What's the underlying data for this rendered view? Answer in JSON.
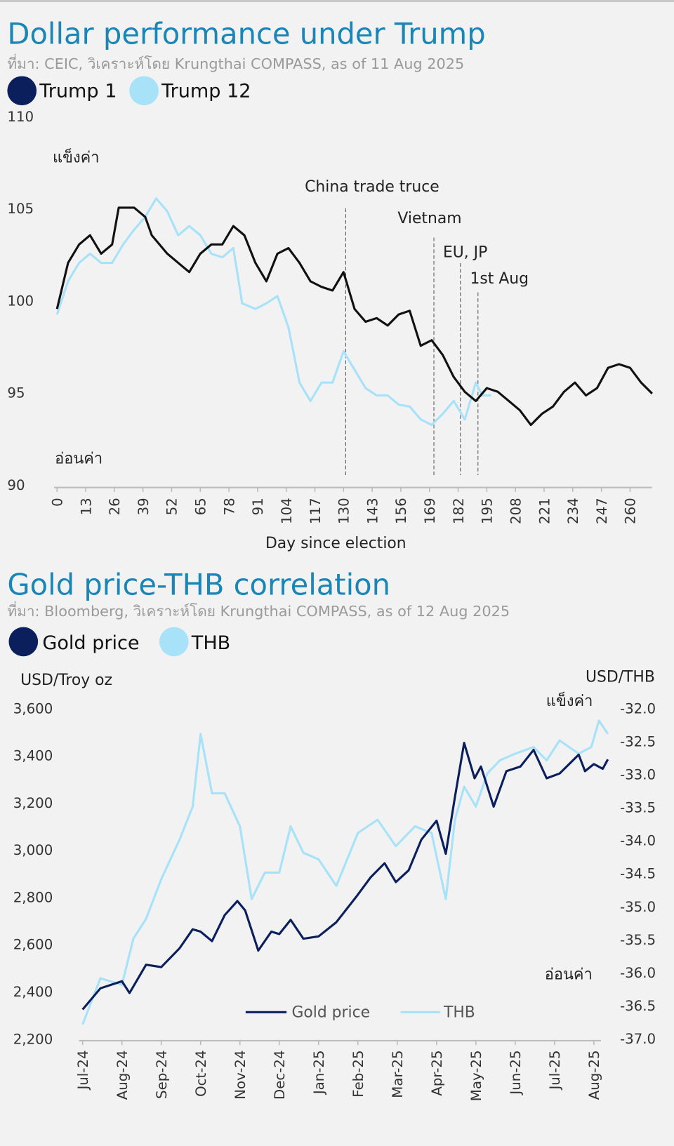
{
  "colors": {
    "title": "#1a86b5",
    "dark_series": "#0b1f5c",
    "light_series": "#a8e2f8",
    "trump1_line": "#111111"
  },
  "chart_data": [
    {
      "type": "line",
      "title": "Dollar performance under Trump",
      "subtitle": "ที่มา: CEIC, วิเคราะห์โดย Krungthai COMPASS, as of 11 Aug 2025",
      "xlabel": "Day since election",
      "ylabel": "",
      "ylim": [
        90,
        110
      ],
      "xlim": [
        0,
        270
      ],
      "grid": false,
      "legend_position": "top-left",
      "yticks": [
        "110",
        "105",
        "100",
        "95",
        "90"
      ],
      "xticks": [
        "0",
        "13",
        "26",
        "39",
        "52",
        "65",
        "78",
        "91",
        "104",
        "117",
        "130",
        "143",
        "156",
        "169",
        "182",
        "195",
        "208",
        "221",
        "234",
        "247",
        "260"
      ],
      "strong_label": "แข็งค่า",
      "weak_label": "อ่อนค่า",
      "annotations": [
        {
          "label": "China trade truce",
          "day": 131
        },
        {
          "label": "Vietnam",
          "day": 171
        },
        {
          "label": "EU, JP",
          "day": 183
        },
        {
          "label": "1st Aug",
          "day": 191
        }
      ],
      "series": [
        {
          "name": "Trump 1",
          "color": "#111111",
          "x": [
            0,
            5,
            10,
            15,
            20,
            25,
            28,
            35,
            40,
            43,
            50,
            55,
            60,
            65,
            70,
            75,
            80,
            85,
            90,
            95,
            100,
            105,
            110,
            115,
            120,
            125,
            130,
            135,
            140,
            145,
            150,
            155,
            160,
            165,
            170,
            175,
            180,
            185,
            190,
            195,
            200,
            205,
            210,
            215,
            220,
            225,
            230,
            235,
            240,
            245,
            250,
            255,
            260,
            265,
            270
          ],
          "values": [
            99.5,
            102,
            103,
            103.5,
            102.5,
            103,
            105,
            105,
            104.5,
            103.5,
            102.5,
            102,
            101.5,
            102.5,
            103,
            103,
            104,
            103.5,
            102,
            101,
            102.5,
            102.8,
            102,
            101,
            100.7,
            100.5,
            101.5,
            99.5,
            98.8,
            99,
            98.6,
            99.2,
            99.4,
            97.5,
            97.8,
            97,
            95.8,
            95,
            94.5,
            95.2,
            95,
            94.5,
            94,
            93.2,
            93.8,
            94.2,
            95,
            95.5,
            94.8,
            95.2,
            96.3,
            96.5,
            96.3,
            95.5,
            94.9
          ]
        },
        {
          "name": "Trump 12",
          "color": "#a8e2f8",
          "x": [
            0,
            5,
            10,
            15,
            20,
            25,
            30,
            35,
            40,
            45,
            50,
            55,
            60,
            65,
            70,
            75,
            80,
            84,
            90,
            95,
            100,
            105,
            110,
            115,
            120,
            125,
            130,
            135,
            140,
            145,
            150,
            155,
            160,
            165,
            170,
            175,
            180,
            185,
            190,
            193,
            197
          ],
          "values": [
            99.2,
            101,
            102,
            102.5,
            102,
            102,
            103,
            103.8,
            104.5,
            105.5,
            104.8,
            103.5,
            104,
            103.5,
            102.5,
            102.3,
            102.8,
            99.8,
            99.5,
            99.8,
            100.2,
            98.5,
            95.5,
            94.5,
            95.5,
            95.5,
            97.2,
            96.2,
            95.2,
            94.8,
            94.8,
            94.3,
            94.2,
            93.5,
            93.2,
            93.8,
            94.5,
            93.5,
            95.5,
            94.8,
            94.8
          ]
        }
      ]
    },
    {
      "type": "line",
      "title": "Gold price-THB correlation",
      "subtitle": "ที่มา: Bloomberg, วิเคราะห์โดย Krungthai COMPASS, as of 12 Aug 2025",
      "ylabel_left": "USD/Troy oz",
      "ylabel_right": "USD/THB",
      "ylim_left": [
        2200,
        3600
      ],
      "ylim_right": [
        -37.0,
        -32.0
      ],
      "grid": false,
      "legend_position": "bottom-center",
      "strong_label": "แข็งค่า",
      "weak_label": "อ่อนค่า",
      "yticks_left": [
        "3,600",
        "3,400",
        "3,200",
        "3,000",
        "2,800",
        "2,600",
        "2,400",
        "2,200"
      ],
      "yticks_right": [
        "-32.0",
        "-32.5",
        "-33.0",
        "-33.5",
        "-34.0",
        "-34.5",
        "-35.0",
        "-35.5",
        "-36.0",
        "-36.5",
        "-37.0"
      ],
      "xticks": [
        "Jul-24",
        "Aug-24",
        "Sep-24",
        "Oct-24",
        "Nov-24",
        "Dec-24",
        "Jan-25",
        "Feb-25",
        "Mar-25",
        "Apr-25",
        "May-25",
        "Jun-25",
        "Jul-25",
        "Aug-25"
      ],
      "series": [
        {
          "name": "Gold price",
          "axis": "left",
          "color": "#0b1f5c",
          "x": [
            "2024-07-01",
            "2024-07-15",
            "2024-08-01",
            "2024-08-07",
            "2024-08-20",
            "2024-09-01",
            "2024-09-15",
            "2024-09-25",
            "2024-10-01",
            "2024-10-10",
            "2024-10-20",
            "2024-10-30",
            "2024-11-05",
            "2024-11-15",
            "2024-11-25",
            "2024-12-01",
            "2024-12-10",
            "2024-12-20",
            "2025-01-01",
            "2025-01-15",
            "2025-01-31",
            "2025-02-10",
            "2025-02-20",
            "2025-02-28",
            "2025-03-10",
            "2025-03-20",
            "2025-04-01",
            "2025-04-08",
            "2025-04-15",
            "2025-04-22",
            "2025-04-30",
            "2025-05-05",
            "2025-05-15",
            "2025-05-25",
            "2025-06-05",
            "2025-06-15",
            "2025-06-25",
            "2025-07-05",
            "2025-07-20",
            "2025-07-25",
            "2025-08-01",
            "2025-08-08",
            "2025-08-12"
          ],
          "values": [
            2320,
            2410,
            2440,
            2390,
            2510,
            2500,
            2580,
            2660,
            2650,
            2610,
            2720,
            2780,
            2740,
            2570,
            2650,
            2640,
            2700,
            2620,
            2630,
            2690,
            2800,
            2880,
            2940,
            2860,
            2910,
            3040,
            3120,
            2980,
            3220,
            3450,
            3300,
            3350,
            3180,
            3330,
            3350,
            3420,
            3300,
            3320,
            3400,
            3330,
            3360,
            3340,
            3380
          ]
        },
        {
          "name": "THB",
          "axis": "right",
          "color": "#a8e2f8",
          "x": [
            "2024-07-01",
            "2024-07-15",
            "2024-08-01",
            "2024-08-10",
            "2024-08-20",
            "2024-09-01",
            "2024-09-15",
            "2024-09-25",
            "2024-10-01",
            "2024-10-10",
            "2024-10-20",
            "2024-11-01",
            "2024-11-10",
            "2024-11-20",
            "2024-12-01",
            "2024-12-10",
            "2024-12-20",
            "2025-01-01",
            "2025-01-15",
            "2025-02-01",
            "2025-02-15",
            "2025-02-28",
            "2025-03-15",
            "2025-03-28",
            "2025-04-08",
            "2025-04-15",
            "2025-04-22",
            "2025-05-01",
            "2025-05-10",
            "2025-05-20",
            "2025-06-01",
            "2025-06-15",
            "2025-06-25",
            "2025-07-05",
            "2025-07-20",
            "2025-07-30",
            "2025-08-05",
            "2025-08-12"
          ],
          "values": [
            -36.8,
            -36.1,
            -36.2,
            -35.5,
            -35.2,
            -34.6,
            -34.0,
            -33.5,
            -32.4,
            -33.3,
            -33.3,
            -33.8,
            -34.9,
            -34.5,
            -34.5,
            -33.8,
            -34.2,
            -34.3,
            -34.7,
            -33.9,
            -33.7,
            -34.1,
            -33.8,
            -33.9,
            -34.9,
            -33.7,
            -33.2,
            -33.5,
            -33.0,
            -32.8,
            -32.7,
            -32.6,
            -32.8,
            -32.5,
            -32.7,
            -32.6,
            -32.2,
            -32.4
          ]
        }
      ]
    }
  ]
}
